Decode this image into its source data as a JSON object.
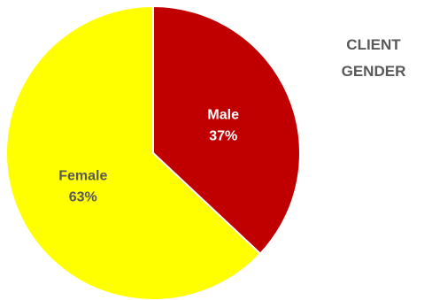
{
  "chart_data": {
    "type": "pie",
    "title_lines": [
      "CLIENT",
      "GENDER"
    ],
    "slices": [
      {
        "name": "Male",
        "value": 37,
        "percent_label": "37%",
        "color": "#C00000",
        "label_color": "#FFFFFF"
      },
      {
        "name": "Female",
        "value": 63,
        "percent_label": "63%",
        "color": "#FFFF00",
        "label_color": "#595959"
      }
    ],
    "start_angle": "12 o'clock",
    "direction": "clockwise",
    "legend": "none"
  }
}
